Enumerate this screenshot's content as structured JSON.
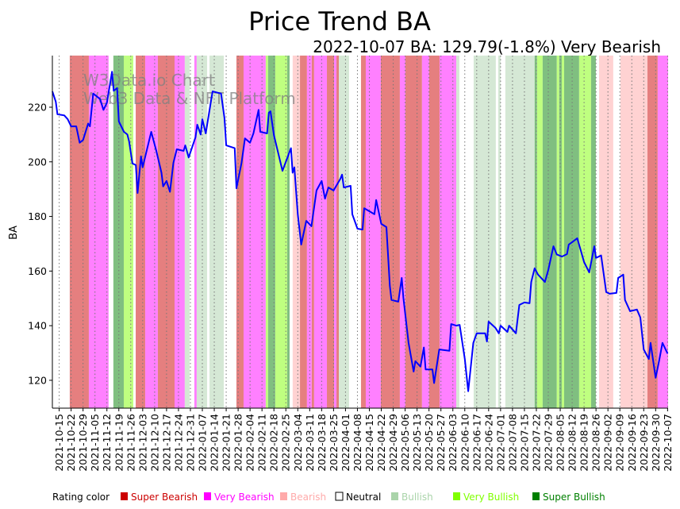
{
  "chart_data": {
    "type": "line",
    "title": "Price Trend BA",
    "subtitle": "2022-10-07 BA: 129.79(-1.8%) Very Bearish",
    "ylabel": "BA",
    "xlabel": "",
    "watermark": [
      "W3Data.io Chart",
      "Web3 Data & NFT Platform"
    ],
    "x_unit": "days since 2021-10-11",
    "xlim": [
      0,
      361.3
    ],
    "ylim": [
      109.8,
      238.9
    ],
    "yticks": [
      120,
      140,
      160,
      180,
      200,
      220
    ],
    "xtick_first_day": 4,
    "xtick_step_days": 7,
    "xticks": [
      "2021-10-15",
      "2021-10-22",
      "2021-10-29",
      "2021-11-05",
      "2021-11-12",
      "2021-11-19",
      "2021-11-26",
      "2021-12-03",
      "2021-12-10",
      "2021-12-17",
      "2021-12-24",
      "2021-12-31",
      "2022-01-07",
      "2022-01-14",
      "2022-01-21",
      "2022-01-28",
      "2022-02-04",
      "2022-02-11",
      "2022-02-18",
      "2022-02-25",
      "2022-03-04",
      "2022-03-11",
      "2022-03-18",
      "2022-03-25",
      "2022-04-01",
      "2022-04-08",
      "2022-04-15",
      "2022-04-22",
      "2022-04-29",
      "2022-05-06",
      "2022-05-13",
      "2022-05-20",
      "2022-05-27",
      "2022-06-03",
      "2022-06-10",
      "2022-06-17",
      "2022-06-24",
      "2022-07-01",
      "2022-07-08",
      "2022-07-15",
      "2022-07-22",
      "2022-07-29",
      "2022-08-05",
      "2022-08-12",
      "2022-08-19",
      "2022-08-26",
      "2022-09-02",
      "2022-09-09",
      "2022-09-16",
      "2022-09-23",
      "2022-09-30",
      "2022-10-07"
    ],
    "series": [
      {
        "name": "BA",
        "color": "#0000ff",
        "points": [
          [
            0,
            225.8
          ],
          [
            2,
            222
          ],
          [
            3,
            217.4
          ],
          [
            7,
            217
          ],
          [
            9,
            215.6
          ],
          [
            11,
            213
          ],
          [
            14,
            213
          ],
          [
            16,
            207
          ],
          [
            18,
            208
          ],
          [
            21,
            214
          ],
          [
            22,
            213
          ],
          [
            24,
            225
          ],
          [
            28,
            223
          ],
          [
            30,
            219
          ],
          [
            32,
            221.6
          ],
          [
            35,
            233
          ],
          [
            36,
            226
          ],
          [
            38,
            227
          ],
          [
            39,
            214.8
          ],
          [
            42,
            211
          ],
          [
            44,
            210
          ],
          [
            45,
            207.5
          ],
          [
            47,
            199.4
          ],
          [
            49,
            198.8
          ],
          [
            50,
            188.6
          ],
          [
            52,
            202
          ],
          [
            53,
            198
          ],
          [
            58,
            211
          ],
          [
            61,
            204
          ],
          [
            64,
            196
          ],
          [
            65,
            191
          ],
          [
            67,
            193
          ],
          [
            69,
            189
          ],
          [
            71,
            199.6
          ],
          [
            73,
            204.6
          ],
          [
            77,
            204
          ],
          [
            78,
            206
          ],
          [
            80,
            201.6
          ],
          [
            84,
            209
          ],
          [
            85,
            213.6
          ],
          [
            87,
            210
          ],
          [
            88,
            215.6
          ],
          [
            90,
            210.4
          ],
          [
            94,
            225.8
          ],
          [
            99,
            225
          ],
          [
            101,
            216
          ],
          [
            102,
            206
          ],
          [
            107,
            205
          ],
          [
            108,
            190.3
          ],
          [
            111,
            199.6
          ],
          [
            113,
            208.6
          ],
          [
            116,
            207
          ],
          [
            118,
            210.4
          ],
          [
            121,
            219
          ],
          [
            122,
            211
          ],
          [
            126,
            210.4
          ],
          [
            127,
            218
          ],
          [
            128,
            218.5
          ],
          [
            130,
            209.8
          ],
          [
            135,
            196.7
          ],
          [
            140,
            205
          ],
          [
            141,
            196
          ],
          [
            142,
            198
          ],
          [
            143,
            189.5
          ],
          [
            144,
            180.8
          ],
          [
            146,
            169.7
          ],
          [
            149,
            178.4
          ],
          [
            152,
            176.4
          ],
          [
            155,
            189.5
          ],
          [
            158,
            193
          ],
          [
            160,
            186.5
          ],
          [
            162,
            190.6
          ],
          [
            165,
            189.5
          ],
          [
            169,
            193.8
          ],
          [
            170,
            195.3
          ],
          [
            171,
            190.6
          ],
          [
            175,
            191.2
          ],
          [
            176,
            180.8
          ],
          [
            179,
            175.5
          ],
          [
            182,
            175.2
          ],
          [
            183,
            183
          ],
          [
            189,
            180.8
          ],
          [
            190,
            186
          ],
          [
            193,
            177.3
          ],
          [
            196,
            176.1
          ],
          [
            198,
            154.6
          ],
          [
            199,
            149.4
          ],
          [
            203,
            148.8
          ],
          [
            205,
            157.5
          ],
          [
            206,
            150.2
          ],
          [
            209,
            133.7
          ],
          [
            212,
            123.2
          ],
          [
            213,
            127
          ],
          [
            216,
            125
          ],
          [
            218,
            132
          ],
          [
            219,
            124
          ],
          [
            223,
            124
          ],
          [
            224,
            119
          ],
          [
            227,
            131.3
          ],
          [
            233,
            130.8
          ],
          [
            234,
            140.6
          ],
          [
            237,
            140
          ],
          [
            239,
            140.3
          ],
          [
            242,
            127.8
          ],
          [
            244,
            116
          ],
          [
            247,
            133.7
          ],
          [
            249,
            137.2
          ],
          [
            254,
            137.2
          ],
          [
            255,
            134.2
          ],
          [
            256,
            141.5
          ],
          [
            260,
            139.2
          ],
          [
            262,
            137.2
          ],
          [
            263,
            140
          ],
          [
            267,
            137.7
          ],
          [
            268,
            140
          ],
          [
            272,
            137.2
          ],
          [
            274,
            147.6
          ],
          [
            277,
            148.5
          ],
          [
            280,
            148.2
          ],
          [
            281,
            156
          ],
          [
            283,
            161
          ],
          [
            285,
            158.7
          ],
          [
            289,
            156
          ],
          [
            291,
            160.4
          ],
          [
            294,
            169.1
          ],
          [
            296,
            166.1
          ],
          [
            299,
            165.3
          ],
          [
            302,
            166.2
          ],
          [
            303,
            169.7
          ],
          [
            305,
            170.6
          ],
          [
            308,
            172
          ],
          [
            310,
            167.7
          ],
          [
            312,
            163.3
          ],
          [
            315,
            159.5
          ],
          [
            316,
            162.7
          ],
          [
            318,
            169.1
          ],
          [
            319,
            164.8
          ],
          [
            322,
            165.7
          ],
          [
            325,
            152.3
          ],
          [
            327,
            151.7
          ],
          [
            331,
            152
          ],
          [
            332,
            157.5
          ],
          [
            335,
            158.7
          ],
          [
            336,
            149.4
          ],
          [
            339,
            145.3
          ],
          [
            343,
            145.9
          ],
          [
            345,
            143
          ],
          [
            347,
            131.3
          ],
          [
            350,
            127.8
          ],
          [
            351,
            133.7
          ],
          [
            354,
            120.9
          ],
          [
            356,
            127
          ],
          [
            358,
            133.7
          ],
          [
            361,
            129.79
          ]
        ]
      }
    ],
    "rating_colors": {
      "Super Bearish": "#e57f7f",
      "Very Bearish": "#ff80ff",
      "Bearish": "#ffd2d2",
      "Neutral": "#ffffff",
      "Bullish": "#d5e8d5",
      "Very Bullish": "#bfff80",
      "Super Bullish": "#80bf80"
    },
    "rating_bands": [
      [
        10.2,
        21.4,
        "Super Bearish"
      ],
      [
        21.4,
        33,
        "Very Bearish"
      ],
      [
        35.8,
        41.9,
        "Super Bullish"
      ],
      [
        41.9,
        47.5,
        "Very Bullish"
      ],
      [
        48.9,
        54.5,
        "Super Bearish"
      ],
      [
        54.5,
        61.9,
        "Very Bearish"
      ],
      [
        61.9,
        71.7,
        "Super Bearish"
      ],
      [
        71.7,
        77.7,
        "Very Bearish"
      ],
      [
        77.7,
        80.5,
        "Bullish"
      ],
      [
        83.3,
        84.7,
        "Very Bearish"
      ],
      [
        84.7,
        90.8,
        "Bullish"
      ],
      [
        92.2,
        100.6,
        "Bullish"
      ],
      [
        108,
        112.2,
        "Super Bearish"
      ],
      [
        112.2,
        125.2,
        "Very Bearish"
      ],
      [
        125.2,
        126.6,
        "Very Bullish"
      ],
      [
        126.6,
        130.8,
        "Super Bullish"
      ],
      [
        130.8,
        137.8,
        "Very Bullish"
      ],
      [
        137.8,
        139.2,
        "Super Bullish"
      ],
      [
        141,
        145.3,
        "Bearish"
      ],
      [
        145.3,
        149.4,
        "Super Bearish"
      ],
      [
        149.4,
        152.2,
        "Very Bearish"
      ],
      [
        152.2,
        153.6,
        "Super Bearish"
      ],
      [
        153.6,
        161.1,
        "Very Bearish"
      ],
      [
        161.1,
        165.3,
        "Super Bearish"
      ],
      [
        165.3,
        166.7,
        "Very Bearish"
      ],
      [
        166.7,
        168.1,
        "Super Bearish"
      ],
      [
        168.1,
        174.1,
        "Bullish"
      ],
      [
        181.1,
        183.9,
        "Super Bearish"
      ],
      [
        183.9,
        192.7,
        "Very Bearish"
      ],
      [
        192.7,
        203.9,
        "Super Bearish"
      ],
      [
        203.9,
        207.2,
        "Very Bearish"
      ],
      [
        207.2,
        216.9,
        "Super Bearish"
      ],
      [
        216.9,
        221.1,
        "Very Bearish"
      ],
      [
        221.1,
        227.2,
        "Super Bearish"
      ],
      [
        227.2,
        237,
        "Very Bearish"
      ],
      [
        237,
        238.8,
        "Bullish"
      ],
      [
        247.2,
        260.2,
        "Bullish"
      ],
      [
        261.6,
        263,
        "Bullish"
      ],
      [
        265.8,
        283,
        "Bullish"
      ],
      [
        283,
        284.4,
        "Super Bullish"
      ],
      [
        284.4,
        287.7,
        "Very Bullish"
      ],
      [
        287.7,
        296,
        "Super Bullish"
      ],
      [
        296,
        297.4,
        "Very Bullish"
      ],
      [
        297.4,
        298.9,
        "Super Bullish"
      ],
      [
        298.9,
        300.3,
        "Very Bullish"
      ],
      [
        300.3,
        309.1,
        "Super Bullish"
      ],
      [
        309.1,
        316.1,
        "Very Bullish"
      ],
      [
        316.1,
        318.9,
        "Super Bullish"
      ],
      [
        320.8,
        329.1,
        "Bearish"
      ],
      [
        333.3,
        349.2,
        "Bearish"
      ],
      [
        349.2,
        355.2,
        "Super Bearish"
      ],
      [
        355.2,
        361.3,
        "Very Bearish"
      ]
    ],
    "legend": {
      "title": "Rating color",
      "placement": "bottom",
      "items": [
        {
          "label": "Super Bearish",
          "color": "#cc0000",
          "text_color": "#cc0000"
        },
        {
          "label": "Very Bearish",
          "color": "#ff00ff",
          "text_color": "#ff00ff"
        },
        {
          "label": "Bearish",
          "color": "#ffaaaa",
          "text_color": "#ffaaaa"
        },
        {
          "label": "Neutral",
          "color": "#ffffff",
          "text_color": "#000000"
        },
        {
          "label": "Bullish",
          "color": "#aad4aa",
          "text_color": "#aad4aa"
        },
        {
          "label": "Very Bullish",
          "color": "#80ff00",
          "text_color": "#80ff00"
        },
        {
          "label": "Super Bullish",
          "color": "#008000",
          "text_color": "#008000"
        }
      ]
    }
  }
}
